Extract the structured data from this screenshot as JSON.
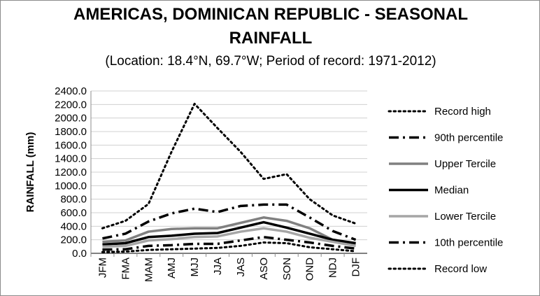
{
  "chart_data": {
    "type": "line",
    "title": "AMERICAS, DOMINICAN REPUBLIC - SEASONAL",
    "title_line2": "RAINFALL",
    "subtitle": "(Location: 18.4°N, 69.7°W; Period of record: 1971-2012)",
    "ylabel": "RAINFALL (mm)",
    "ylim": [
      0,
      2400
    ],
    "yticks": [
      "0.0",
      "200.0",
      "400.0",
      "600.0",
      "800.0",
      "1000.0",
      "1200.0",
      "1400.0",
      "1600.0",
      "1800.0",
      "2000.0",
      "2200.0",
      "2400.0"
    ],
    "categories": [
      "JFM",
      "FMA",
      "MAM",
      "AMJ",
      "MJJ",
      "JJA",
      "JAS",
      "ASO",
      "SON",
      "OND",
      "NDJ",
      "DJF"
    ],
    "grid": true,
    "legend_position": "right",
    "series": [
      {
        "name": "Record high",
        "style": "dotted",
        "color": "#000000",
        "width": 3,
        "values": [
          370,
          480,
          730,
          1500,
          2210,
          1850,
          1500,
          1100,
          1170,
          800,
          560,
          440
        ]
      },
      {
        "name": "90th percentile",
        "style": "dashdot",
        "color": "#000000",
        "width": 3.5,
        "values": [
          220,
          290,
          470,
          590,
          660,
          610,
          700,
          720,
          720,
          530,
          330,
          200
        ]
      },
      {
        "name": "Upper Tercile",
        "style": "solid",
        "color": "#808080",
        "width": 3.5,
        "values": [
          170,
          190,
          320,
          360,
          370,
          370,
          450,
          530,
          480,
          370,
          200,
          140
        ]
      },
      {
        "name": "Median",
        "style": "solid",
        "color": "#000000",
        "width": 3.5,
        "values": [
          130,
          150,
          240,
          260,
          290,
          300,
          380,
          460,
          380,
          290,
          200,
          150
        ]
      },
      {
        "name": "Lower Tercile",
        "style": "solid",
        "color": "#a6a6a6",
        "width": 3.5,
        "values": [
          100,
          110,
          190,
          210,
          240,
          250,
          320,
          370,
          320,
          230,
          170,
          110
        ]
      },
      {
        "name": "10th percentile",
        "style": "dashdot",
        "color": "#000000",
        "width": 3.5,
        "values": [
          55,
          60,
          110,
          120,
          140,
          140,
          190,
          240,
          200,
          160,
          110,
          70
        ]
      },
      {
        "name": "Record low",
        "style": "dotted",
        "color": "#000000",
        "width": 3,
        "values": [
          20,
          25,
          50,
          60,
          70,
          80,
          110,
          160,
          150,
          90,
          60,
          30
        ]
      }
    ]
  }
}
